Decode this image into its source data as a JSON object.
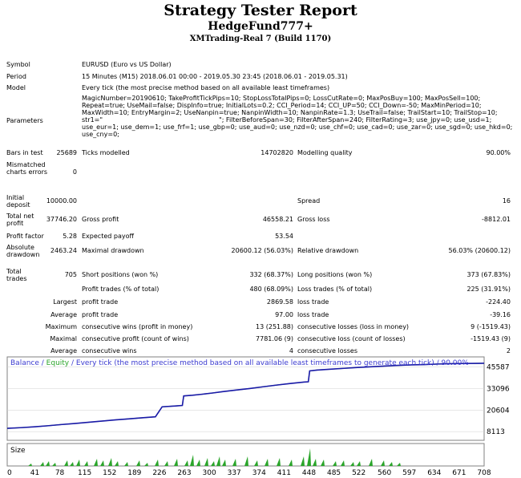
{
  "report": {
    "title": "Strategy Tester Report",
    "ea_name": "HedgeFund777+",
    "server": "XMTrading-Real 7 (Build 1170)"
  },
  "labels": {
    "symbol": "Symbol",
    "period": "Period",
    "model": "Model",
    "parameters": "Parameters",
    "bars_in_test": "Bars in test",
    "mismatched": "Mismatched charts errors",
    "initial_deposit": "Initial deposit",
    "total_net_profit": "Total net profit",
    "profit_factor": "Profit factor",
    "absolute_drawdown": "Absolute drawdown",
    "total_trades": "Total trades",
    "ticks_modelled": "Ticks modelled",
    "modelling_quality": "Modelling quality",
    "spread": "Spread",
    "gross_profit": "Gross profit",
    "gross_loss": "Gross loss",
    "expected_payoff": "Expected payoff",
    "maximal_drawdown": "Maximal drawdown",
    "relative_drawdown": "Relative drawdown",
    "short_positions": "Short positions (won %)",
    "long_positions": "Long positions (won %)",
    "profit_trades": "Profit trades (% of total)",
    "loss_trades": "Loss trades (% of total)",
    "largest": "Largest",
    "average": "Average",
    "maximum": "Maximum",
    "maximal": "Maximal",
    "average2": "Average",
    "profit_trade": "profit trade",
    "loss_trade": "loss trade",
    "profit_trade2": "profit trade",
    "loss_trade2": "loss trade",
    "cons_wins_money": "consecutive wins (profit in money)",
    "cons_losses_money": "consecutive losses (loss in money)",
    "cons_profit_count": "consecutive profit (count of wins)",
    "cons_loss_count": "consecutive loss (count of losses)",
    "cons_wins": "consecutive wins",
    "cons_losses": "consecutive losses"
  },
  "values": {
    "symbol": "EURUSD (Euro vs US Dollar)",
    "period": "15 Minutes (M15) 2018.06.01 00:00 - 2019.05.30 23:45 (2018.06.01 - 2019.05.31)",
    "model": "Every tick (the most precise method based on all available least timeframes)",
    "parameters": "MagicNumber=20190610; TakeProfitTickPips=10; StopLossTotalPips=0; LossCutRate=0; MaxPosBuy=100; MaxPosSell=100; Repeat=true; UseMail=false; DispInfo=true; InitialLots=0.2; CCI_Period=14; CCI_UP=50; CCI_Down=-50; MaxMinPeriod=10; MaxWidth=10; EntryMargin=2; UseNanpin=true; NanpinWidth=10; NanpinRate=1.3; UseTrail=false; TrailStart=10; TrailStop=10; str1=\"                                                         \"; FilterBeforeSpan=30; FilterAfterSpan=240; FilterRating=3; use_jpy=0; use_usd=1; use_eur=1; use_dem=1; use_frf=1; use_gbp=0; use_aud=0; use_nzd=0; use_chf=0; use_cad=0; use_zar=0; use_sgd=0; use_hkd=0; use_cny=0;",
    "bars_in_test": "25689",
    "ticks_modelled": "14702820",
    "modelling_quality": "90.00%",
    "mismatched": "0",
    "initial_deposit": "10000.00",
    "spread": "16",
    "total_net_profit": "37746.20",
    "gross_profit": "46558.21",
    "gross_loss": "-8812.01",
    "profit_factor": "5.28",
    "expected_payoff": "53.54",
    "absolute_drawdown": "2463.24",
    "maximal_drawdown": "20600.12 (56.03%)",
    "relative_drawdown": "56.03% (20600.12)",
    "total_trades": "705",
    "short_positions": "332 (68.37%)",
    "long_positions": "373 (67.83%)",
    "profit_trades": "480 (68.09%)",
    "loss_trades": "225 (31.91%)",
    "largest_profit": "2869.58",
    "largest_loss": "-224.40",
    "average_profit": "97.00",
    "average_loss": "-39.16",
    "cons_wins_money": "13 (251.88)",
    "cons_losses_money": "9 (-1519.43)",
    "cons_profit_count": "7781.06 (9)",
    "cons_loss_count": "-1519.43 (9)",
    "avg_cons_wins": "4",
    "avg_cons_losses": "2"
  },
  "chart_data": {
    "type": "line",
    "title_balance": "Balance",
    "title_sep1": " / ",
    "title_equity": "Equity",
    "title_rest": " / Every tick (the most precise method based on all available least timeframes to generate each tick) / 90.00%",
    "size_label": "Size",
    "ylim": [
      4000,
      50500
    ],
    "y_ticks": [
      45587,
      33096,
      20604,
      8113
    ],
    "x_ticks": [
      0,
      41,
      78,
      115,
      152,
      189,
      226,
      263,
      300,
      337,
      374,
      411,
      448,
      485,
      522,
      560,
      597,
      634,
      671,
      708
    ],
    "xlim": [
      0,
      708
    ],
    "colors": {
      "balance": "#1a1aa8",
      "equity": "#2aa52a",
      "title_balance": "#3b3bd0",
      "title_equity": "#2aa52a",
      "axis_text": "#000000",
      "grid": "#d0d0d0",
      "size_bars": "#2aa52a"
    },
    "series": [
      {
        "name": "Balance",
        "x": [
          0,
          20,
          40,
          60,
          80,
          100,
          120,
          140,
          160,
          180,
          200,
          220,
          230,
          250,
          260,
          262,
          275,
          290,
          305,
          320,
          340,
          360,
          380,
          400,
          420,
          440,
          447,
          449,
          460,
          480,
          500,
          520,
          540,
          560,
          580,
          600,
          620,
          640,
          660,
          680,
          700,
          708
        ],
        "y": [
          10000,
          10400,
          10900,
          11500,
          12200,
          12800,
          13500,
          14200,
          14900,
          15500,
          16100,
          16700,
          22500,
          23000,
          23300,
          28800,
          29200,
          29800,
          30500,
          31300,
          32200,
          33100,
          34100,
          35100,
          36000,
          36800,
          37000,
          43300,
          43800,
          44300,
          44800,
          45300,
          45700,
          46100,
          46500,
          46800,
          47000,
          47300,
          47500,
          47600,
          47700,
          47750
        ]
      }
    ]
  }
}
